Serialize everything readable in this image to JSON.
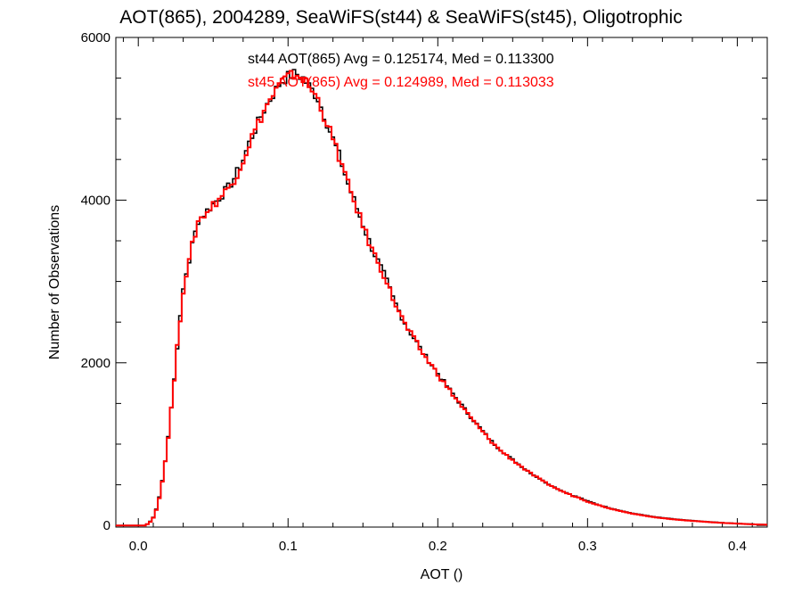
{
  "chart_data": {
    "type": "histogram",
    "title": "AOT(865), 2004289, SeaWiFS(st44) & SeaWiFS(st45), Oligotrophic",
    "xlabel": "AOT ()",
    "ylabel": "Number of Observations",
    "xlim": [
      -0.015,
      0.42
    ],
    "ylim": [
      -20,
      6000
    ],
    "xticks": [
      0.0,
      0.1,
      0.2,
      0.3,
      0.4
    ],
    "xtick_labels": [
      "0.0",
      "0.1",
      "0.2",
      "0.3",
      "0.4"
    ],
    "yticks": [
      0,
      2000,
      4000,
      6000
    ],
    "ytick_labels": [
      "0",
      "2000",
      "4000",
      "6000"
    ],
    "bin_width": 0.002,
    "grid": false,
    "annotations": [
      {
        "text": "st44 AOT(865) Avg = 0.125174, Med = 0.113300",
        "color": "#000000"
      },
      {
        "text": "st45 AOT(865) Avg = 0.124989, Med = 0.113033",
        "color": "#ff0000"
      }
    ],
    "series": [
      {
        "name": "st44",
        "color": "#000000",
        "points": [
          [
            -0.015,
            0
          ],
          [
            0.005,
            0
          ],
          [
            0.008,
            50
          ],
          [
            0.01,
            100
          ],
          [
            0.012,
            200
          ],
          [
            0.014,
            350
          ],
          [
            0.016,
            550
          ],
          [
            0.018,
            800
          ],
          [
            0.02,
            1100
          ],
          [
            0.022,
            1450
          ],
          [
            0.024,
            1800
          ],
          [
            0.026,
            2200
          ],
          [
            0.028,
            2550
          ],
          [
            0.03,
            2900
          ],
          [
            0.032,
            3100
          ],
          [
            0.034,
            3250
          ],
          [
            0.036,
            3450
          ],
          [
            0.038,
            3600
          ],
          [
            0.04,
            3750
          ],
          [
            0.045,
            3850
          ],
          [
            0.05,
            3950
          ],
          [
            0.055,
            4050
          ],
          [
            0.06,
            4150
          ],
          [
            0.065,
            4300
          ],
          [
            0.07,
            4500
          ],
          [
            0.075,
            4750
          ],
          [
            0.08,
            4950
          ],
          [
            0.085,
            5150
          ],
          [
            0.09,
            5300
          ],
          [
            0.095,
            5450
          ],
          [
            0.1,
            5520
          ],
          [
            0.105,
            5560
          ],
          [
            0.11,
            5500
          ],
          [
            0.115,
            5380
          ],
          [
            0.12,
            5250
          ],
          [
            0.125,
            5000
          ],
          [
            0.13,
            4750
          ],
          [
            0.135,
            4500
          ],
          [
            0.14,
            4200
          ],
          [
            0.145,
            3950
          ],
          [
            0.15,
            3700
          ],
          [
            0.155,
            3450
          ],
          [
            0.16,
            3250
          ],
          [
            0.165,
            3050
          ],
          [
            0.17,
            2800
          ],
          [
            0.175,
            2600
          ],
          [
            0.18,
            2420
          ],
          [
            0.185,
            2280
          ],
          [
            0.19,
            2120
          ],
          [
            0.195,
            2000
          ],
          [
            0.2,
            1870
          ],
          [
            0.205,
            1740
          ],
          [
            0.21,
            1620
          ],
          [
            0.215,
            1500
          ],
          [
            0.22,
            1380
          ],
          [
            0.225,
            1270
          ],
          [
            0.23,
            1160
          ],
          [
            0.235,
            1050
          ],
          [
            0.24,
            960
          ],
          [
            0.245,
            880
          ],
          [
            0.25,
            810
          ],
          [
            0.255,
            740
          ],
          [
            0.26,
            670
          ],
          [
            0.265,
            610
          ],
          [
            0.27,
            550
          ],
          [
            0.275,
            500
          ],
          [
            0.28,
            450
          ],
          [
            0.285,
            410
          ],
          [
            0.29,
            370
          ],
          [
            0.295,
            340
          ],
          [
            0.3,
            300
          ],
          [
            0.305,
            270
          ],
          [
            0.31,
            240
          ],
          [
            0.315,
            215
          ],
          [
            0.32,
            190
          ],
          [
            0.325,
            170
          ],
          [
            0.33,
            150
          ],
          [
            0.335,
            135
          ],
          [
            0.34,
            120
          ],
          [
            0.345,
            105
          ],
          [
            0.35,
            95
          ],
          [
            0.355,
            85
          ],
          [
            0.36,
            75
          ],
          [
            0.365,
            67
          ],
          [
            0.37,
            60
          ],
          [
            0.375,
            53
          ],
          [
            0.38,
            46
          ],
          [
            0.385,
            40
          ],
          [
            0.39,
            34
          ],
          [
            0.395,
            29
          ],
          [
            0.4,
            25
          ],
          [
            0.405,
            20
          ],
          [
            0.41,
            16
          ],
          [
            0.415,
            12
          ],
          [
            0.42,
            9
          ]
        ]
      },
      {
        "name": "st45",
        "color": "#ff0000",
        "points": [
          [
            -0.015,
            0
          ],
          [
            0.005,
            0
          ],
          [
            0.008,
            45
          ],
          [
            0.01,
            95
          ],
          [
            0.012,
            190
          ],
          [
            0.014,
            340
          ],
          [
            0.016,
            540
          ],
          [
            0.018,
            790
          ],
          [
            0.02,
            1090
          ],
          [
            0.022,
            1440
          ],
          [
            0.024,
            1790
          ],
          [
            0.026,
            2190
          ],
          [
            0.028,
            2540
          ],
          [
            0.03,
            2890
          ],
          [
            0.032,
            3090
          ],
          [
            0.034,
            3240
          ],
          [
            0.036,
            3440
          ],
          [
            0.038,
            3590
          ],
          [
            0.04,
            3740
          ],
          [
            0.045,
            3840
          ],
          [
            0.05,
            3940
          ],
          [
            0.055,
            4040
          ],
          [
            0.06,
            4140
          ],
          [
            0.065,
            4290
          ],
          [
            0.07,
            4490
          ],
          [
            0.075,
            4740
          ],
          [
            0.08,
            4940
          ],
          [
            0.085,
            5140
          ],
          [
            0.09,
            5290
          ],
          [
            0.095,
            5440
          ],
          [
            0.1,
            5510
          ],
          [
            0.105,
            5550
          ],
          [
            0.11,
            5490
          ],
          [
            0.115,
            5370
          ],
          [
            0.12,
            5240
          ],
          [
            0.125,
            4990
          ],
          [
            0.13,
            4740
          ],
          [
            0.135,
            4490
          ],
          [
            0.14,
            4190
          ],
          [
            0.145,
            3940
          ],
          [
            0.15,
            3690
          ],
          [
            0.155,
            3440
          ],
          [
            0.16,
            3240
          ],
          [
            0.165,
            3040
          ],
          [
            0.17,
            2790
          ],
          [
            0.175,
            2590
          ],
          [
            0.18,
            2410
          ],
          [
            0.185,
            2270
          ],
          [
            0.19,
            2110
          ],
          [
            0.195,
            1990
          ],
          [
            0.2,
            1860
          ],
          [
            0.205,
            1730
          ],
          [
            0.21,
            1610
          ],
          [
            0.215,
            1490
          ],
          [
            0.22,
            1370
          ],
          [
            0.225,
            1260
          ],
          [
            0.23,
            1150
          ],
          [
            0.235,
            1045
          ],
          [
            0.24,
            955
          ],
          [
            0.245,
            875
          ],
          [
            0.25,
            805
          ],
          [
            0.255,
            735
          ],
          [
            0.26,
            665
          ],
          [
            0.265,
            605
          ],
          [
            0.27,
            545
          ],
          [
            0.275,
            495
          ],
          [
            0.28,
            445
          ],
          [
            0.285,
            405
          ],
          [
            0.29,
            365
          ],
          [
            0.295,
            335
          ],
          [
            0.3,
            295
          ],
          [
            0.305,
            265
          ],
          [
            0.31,
            235
          ],
          [
            0.315,
            210
          ],
          [
            0.32,
            185
          ],
          [
            0.325,
            165
          ],
          [
            0.33,
            145
          ],
          [
            0.335,
            130
          ],
          [
            0.34,
            115
          ],
          [
            0.345,
            100
          ],
          [
            0.35,
            90
          ],
          [
            0.355,
            80
          ],
          [
            0.36,
            70
          ],
          [
            0.365,
            63
          ],
          [
            0.37,
            56
          ],
          [
            0.375,
            50
          ],
          [
            0.38,
            43
          ],
          [
            0.385,
            37
          ],
          [
            0.39,
            31
          ],
          [
            0.395,
            27
          ],
          [
            0.4,
            23
          ],
          [
            0.405,
            18
          ],
          [
            0.41,
            14
          ],
          [
            0.415,
            11
          ],
          [
            0.42,
            8
          ]
        ]
      }
    ]
  }
}
